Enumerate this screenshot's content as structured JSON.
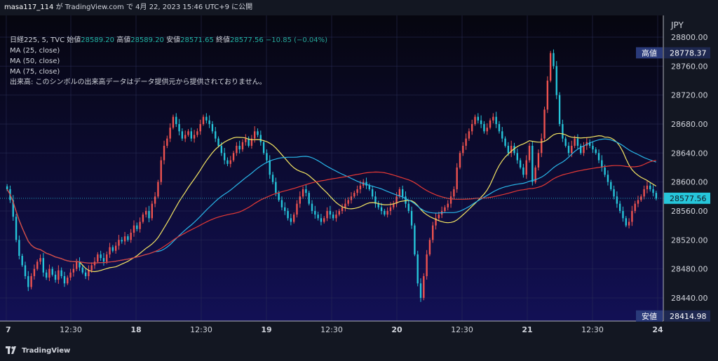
{
  "header": {
    "user": "masa117_114",
    "via": "が TradingView.com で 4月 22, 2023 15:46 UTC+9 に公開"
  },
  "legend": {
    "symbol": "日経225, 5, TVC",
    "open_label": "始値",
    "open": "28589.20",
    "high_label": "高値",
    "high": "28589.20",
    "low_label": "安値",
    "low": "28571.65",
    "close_label": "終値",
    "close": "28577.56",
    "change": "−10.85 (−0.04%)",
    "ma25": "MA (25, close)",
    "ma50": "MA (50, close)",
    "ma75": "MA (75, close)",
    "volume_note": "出来高: このシンボルの出来高データはデータ提供元から提供されておりません。"
  },
  "footer": {
    "brand": "TradingView"
  },
  "colors": {
    "background_top": "#06060f",
    "background_bottom": "#121055",
    "up": "#ef5350",
    "down": "#26c6da",
    "ma25": "#f5e663",
    "ma50": "#29b6e8",
    "ma75": "#e53935",
    "price_line": "#26c6da"
  },
  "chart_data": {
    "type": "candlestick",
    "currency": "JPY",
    "ylim": [
      28408,
      28830
    ],
    "y_ticks": [
      28440,
      28480,
      28520,
      28560,
      28600,
      28640,
      28680,
      28720,
      28760,
      28800
    ],
    "x_ticks": [
      {
        "label": "7",
        "t": 0.4
      },
      {
        "label": "12:30",
        "t": 40
      },
      {
        "label": "18",
        "t": 80
      },
      {
        "label": "12:30",
        "t": 120
      },
      {
        "label": "19",
        "t": 160
      },
      {
        "label": "12:30",
        "t": 200
      },
      {
        "label": "20",
        "t": 240
      },
      {
        "label": "12:30",
        "t": 280
      },
      {
        "label": "21",
        "t": 320
      },
      {
        "label": "12:30",
        "t": 360
      },
      {
        "label": "24",
        "t": 400
      }
    ],
    "day_separators": [
      80,
      160,
      240,
      320,
      400
    ],
    "last_price": {
      "value": 28577.56,
      "label": "28577.56"
    },
    "high_marker": {
      "label": "高値",
      "value": 28778.37,
      "text": "28778.37"
    },
    "low_marker": {
      "label": "安値",
      "value": 28414.98,
      "text": "28414.98"
    },
    "closes": [
      28590,
      28575,
      28552,
      28520,
      28498,
      28485,
      28470,
      28455,
      28470,
      28480,
      28490,
      28495,
      28475,
      28468,
      28480,
      28472,
      28465,
      28478,
      28470,
      28460,
      28468,
      28475,
      28480,
      28490,
      28482,
      28475,
      28470,
      28478,
      28485,
      28490,
      28500,
      28495,
      28490,
      28500,
      28510,
      28505,
      28512,
      28520,
      28518,
      28525,
      28520,
      28530,
      28540,
      28535,
      28545,
      28555,
      28560,
      28550,
      28570,
      28580,
      28600,
      28630,
      28650,
      28660,
      28675,
      28690,
      28680,
      28670,
      28660,
      28665,
      28670,
      28660,
      28665,
      28670,
      28680,
      28690,
      28685,
      28680,
      28670,
      28660,
      28650,
      28640,
      28630,
      28625,
      28630,
      28640,
      28650,
      28645,
      28655,
      28660,
      28650,
      28660,
      28670,
      28665,
      28655,
      28640,
      28630,
      28610,
      28600,
      28585,
      28575,
      28565,
      28560,
      28550,
      28545,
      28555,
      28570,
      28580,
      28590,
      28585,
      28570,
      28560,
      28555,
      28550,
      28545,
      28550,
      28560,
      28555,
      28550,
      28555,
      28560,
      28565,
      28570,
      28575,
      28580,
      28585,
      28590,
      28595,
      28600,
      28595,
      28590,
      28580,
      28570,
      28565,
      28560,
      28555,
      28560,
      28565,
      28570,
      28580,
      28590,
      28580,
      28570,
      28560,
      28540,
      28500,
      28460,
      28440,
      28470,
      28500,
      28520,
      28540,
      28550,
      28555,
      28560,
      28565,
      28570,
      28580,
      28590,
      28620,
      28640,
      28650,
      28660,
      28670,
      28680,
      28690,
      28685,
      28680,
      28670,
      28675,
      28685,
      28690,
      28680,
      28670,
      28660,
      28650,
      28640,
      28650,
      28640,
      28630,
      28620,
      28610,
      28630,
      28650,
      28600,
      28620,
      28640,
      28660,
      28700,
      28740,
      28778,
      28760,
      28720,
      28680,
      28660,
      28650,
      28640,
      28650,
      28660,
      28650,
      28640,
      28650,
      28655,
      28650,
      28645,
      28640,
      28630,
      28620,
      28610,
      28600,
      28590,
      28580,
      28570,
      28560,
      28550,
      28540,
      28545,
      28560,
      28570,
      28575,
      28580,
      28590,
      28595,
      28590,
      28585,
      28577
    ]
  }
}
